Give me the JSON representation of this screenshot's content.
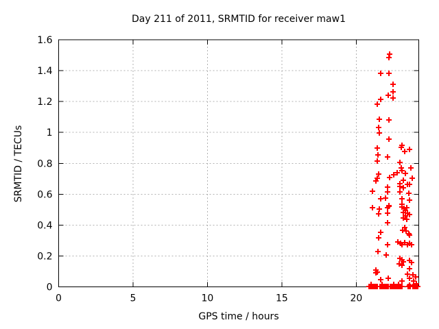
{
  "window": {
    "background": "#ffffff"
  },
  "chart_data": {
    "type": "scatter",
    "title": "Day 211 of 2011, SRMTID for receiver maw1",
    "xlabel": "GPS time / hours",
    "ylabel": "SRMTID / TECUs",
    "xlim": [
      0,
      24.2
    ],
    "ylim": [
      0,
      1.6
    ],
    "xticks": [
      0,
      5,
      10,
      15,
      20
    ],
    "yticks": [
      0,
      0.2,
      0.4,
      0.6,
      0.8,
      1,
      1.2,
      1.4,
      1.6
    ],
    "grid": true,
    "legend": "none",
    "marker": "plus",
    "marker_color": "#ff0000",
    "grid_color": "#b0b0b0",
    "axis_color": "#000000",
    "series": [
      {
        "name": "SRMTID maw1 day 211",
        "points": [
          [
            22.26,
            1.507
          ],
          [
            22.21,
            1.485
          ],
          [
            21.62,
            1.383
          ],
          [
            22.21,
            1.383
          ],
          [
            22.45,
            1.312
          ],
          [
            22.45,
            1.263
          ],
          [
            22.17,
            1.241
          ],
          [
            22.45,
            1.223
          ],
          [
            21.62,
            1.214
          ],
          [
            21.43,
            1.183
          ],
          [
            21.57,
            1.085
          ],
          [
            22.21,
            1.081
          ],
          [
            21.52,
            1.032
          ],
          [
            21.57,
            0.997
          ],
          [
            22.21,
            0.957
          ],
          [
            23.09,
            0.917
          ],
          [
            23.04,
            0.903
          ],
          [
            21.43,
            0.899
          ],
          [
            23.27,
            0.877
          ],
          [
            21.48,
            0.854
          ],
          [
            22.08,
            0.841
          ],
          [
            21.39,
            0.815
          ],
          [
            22.95,
            0.806
          ],
          [
            23.04,
            0.77
          ],
          [
            23.09,
            0.752
          ],
          [
            23.32,
            0.734
          ],
          [
            21.52,
            0.73
          ],
          [
            22.77,
            0.739
          ],
          [
            22.54,
            0.726
          ],
          [
            22.26,
            0.708
          ],
          [
            21.43,
            0.704
          ],
          [
            21.34,
            0.686
          ],
          [
            23.18,
            0.69
          ],
          [
            22.95,
            0.668
          ],
          [
            23.46,
            0.664
          ],
          [
            23.6,
            0.664
          ],
          [
            22.95,
            0.65
          ],
          [
            23.18,
            0.641
          ],
          [
            22.08,
            0.646
          ],
          [
            21.11,
            0.619
          ],
          [
            22.12,
            0.615
          ],
          [
            22.95,
            0.615
          ],
          [
            21.62,
            0.57
          ],
          [
            21.98,
            0.575
          ],
          [
            23.09,
            0.57
          ],
          [
            23.09,
            0.535
          ],
          [
            22.21,
            0.526
          ],
          [
            23.6,
            0.89
          ],
          [
            23.69,
            0.77
          ],
          [
            23.78,
            0.704
          ],
          [
            23.55,
            0.606
          ],
          [
            23.6,
            0.562
          ],
          [
            21.11,
            0.513
          ],
          [
            21.57,
            0.504
          ],
          [
            21.52,
            0.473
          ],
          [
            22.12,
            0.513
          ],
          [
            22.21,
            0.521
          ],
          [
            22.08,
            0.477
          ],
          [
            23.09,
            0.517
          ],
          [
            23.23,
            0.508
          ],
          [
            23.41,
            0.513
          ],
          [
            23.32,
            0.495
          ],
          [
            23.18,
            0.482
          ],
          [
            23.46,
            0.477
          ],
          [
            23.6,
            0.468
          ],
          [
            23.32,
            0.459
          ],
          [
            23.18,
            0.446
          ],
          [
            23.41,
            0.437
          ],
          [
            22.12,
            0.415
          ],
          [
            21.62,
            0.353
          ],
          [
            21.52,
            0.317
          ],
          [
            23.27,
            0.384
          ],
          [
            23.13,
            0.366
          ],
          [
            23.37,
            0.362
          ],
          [
            23.55,
            0.344
          ],
          [
            23.6,
            0.335
          ],
          [
            22.81,
            0.291
          ],
          [
            23.0,
            0.282
          ],
          [
            23.09,
            0.273
          ],
          [
            23.27,
            0.286
          ],
          [
            23.46,
            0.273
          ],
          [
            23.6,
            0.282
          ],
          [
            23.73,
            0.273
          ],
          [
            22.12,
            0.273
          ],
          [
            21.48,
            0.229
          ],
          [
            22.03,
            0.206
          ],
          [
            22.95,
            0.184
          ],
          [
            23.09,
            0.175
          ],
          [
            23.18,
            0.162
          ],
          [
            22.9,
            0.149
          ],
          [
            23.09,
            0.14
          ],
          [
            23.6,
            0.171
          ],
          [
            23.73,
            0.158
          ],
          [
            23.6,
            0.118
          ],
          [
            21.34,
            0.109
          ],
          [
            21.43,
            0.095
          ],
          [
            21.34,
            0.091
          ],
          [
            21.62,
            0.047
          ],
          [
            22.17,
            0.055
          ],
          [
            23.46,
            0.082
          ],
          [
            23.6,
            0.055
          ],
          [
            23.09,
            0.038
          ],
          [
            23.83,
            0.078
          ],
          [
            23.97,
            0.064
          ],
          [
            23.87,
            0.038
          ],
          [
            24.05,
            0.02
          ],
          [
            20.85,
            0.004
          ],
          [
            20.92,
            0.004
          ],
          [
            20.99,
            0.004
          ],
          [
            21.06,
            0.004
          ],
          [
            21.13,
            0.004
          ],
          [
            21.2,
            0.004
          ],
          [
            21.27,
            0.004
          ],
          [
            21.34,
            0.004
          ],
          [
            21.41,
            0.004
          ],
          [
            21.6,
            0.004
          ],
          [
            21.67,
            0.004
          ],
          [
            21.74,
            0.004
          ],
          [
            21.81,
            0.004
          ],
          [
            21.88,
            0.004
          ],
          [
            21.95,
            0.004
          ],
          [
            22.02,
            0.004
          ],
          [
            22.09,
            0.004
          ],
          [
            22.16,
            0.004
          ],
          [
            22.3,
            0.004
          ],
          [
            22.37,
            0.004
          ],
          [
            22.44,
            0.004
          ],
          [
            22.51,
            0.004
          ],
          [
            22.58,
            0.004
          ],
          [
            22.65,
            0.004
          ],
          [
            22.72,
            0.004
          ],
          [
            22.79,
            0.004
          ],
          [
            22.86,
            0.004
          ],
          [
            22.93,
            0.004
          ],
          [
            23.0,
            0.004
          ],
          [
            23.07,
            0.004
          ],
          [
            23.5,
            0.004
          ],
          [
            23.57,
            0.004
          ],
          [
            23.63,
            0.004
          ],
          [
            23.8,
            0.004
          ],
          [
            23.87,
            0.004
          ],
          [
            23.93,
            0.004
          ],
          [
            24.0,
            0.004
          ],
          [
            24.08,
            0.004
          ],
          [
            24.13,
            0.004
          ],
          [
            21.0,
            0.014
          ],
          [
            21.75,
            0.014
          ],
          [
            22.5,
            0.014
          ],
          [
            22.85,
            0.014
          ],
          [
            23.6,
            0.012
          ]
        ]
      }
    ]
  }
}
